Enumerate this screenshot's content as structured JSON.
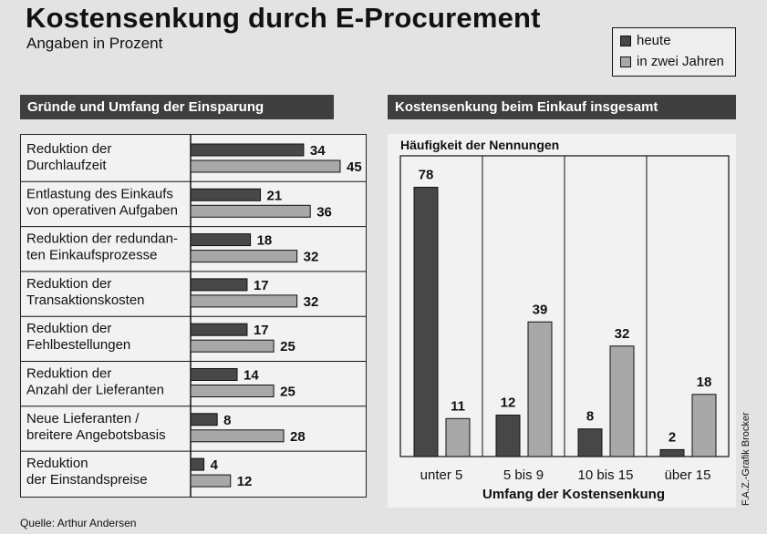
{
  "title": "Kostensenkung durch E-Procurement",
  "subtitle": "Angaben in Prozent",
  "legend": {
    "heute": "heute",
    "in_zwei_jahren": "in zwei Jahren"
  },
  "colors": {
    "heute": "#474747",
    "in_zwei_jahren": "#a8a8a8",
    "header_bg": "#3f3f3f",
    "panel_bg": "#f2f2f2"
  },
  "source": "Quelle: Arthur Andersen",
  "credit": "F.A.Z.-Grafik Brocker",
  "chart_data": [
    {
      "type": "bar",
      "orientation": "horizontal",
      "title": "Gründe und Umfang der Einsparung",
      "categories": [
        [
          "Reduktion der",
          "Durchlaufzeit"
        ],
        [
          "Entlastung des Einkaufs",
          "von operativen Aufgaben"
        ],
        [
          "Reduktion der redundan-",
          "ten Einkaufsprozesse"
        ],
        [
          "Reduktion der",
          "Transaktionskosten"
        ],
        [
          "Reduktion der",
          "Fehlbestellungen"
        ],
        [
          "Reduktion der",
          "Anzahl der Lieferanten"
        ],
        [
          "Neue Lieferanten /",
          "breitere Angebotsbasis"
        ],
        [
          "Reduktion",
          "der Einstandspreise"
        ]
      ],
      "series": [
        {
          "name": "heute",
          "values": [
            34,
            21,
            18,
            17,
            17,
            14,
            8,
            4
          ]
        },
        {
          "name": "in zwei Jahren",
          "values": [
            45,
            36,
            32,
            32,
            25,
            25,
            28,
            12
          ]
        }
      ],
      "xlim": [
        0,
        45
      ]
    },
    {
      "type": "bar",
      "title": "Kostensenkung beim Einkauf insgesamt",
      "ylabel": "Häufigkeit der Nennungen",
      "xlabel": "Umfang der Kostensenkung",
      "categories": [
        "unter 5",
        "5 bis 9",
        "10 bis 15",
        "über 15"
      ],
      "series": [
        {
          "name": "heute",
          "values": [
            78,
            12,
            8,
            2
          ]
        },
        {
          "name": "in zwei Jahren",
          "values": [
            11,
            39,
            32,
            18
          ]
        }
      ],
      "ylim": [
        0,
        85
      ]
    }
  ]
}
